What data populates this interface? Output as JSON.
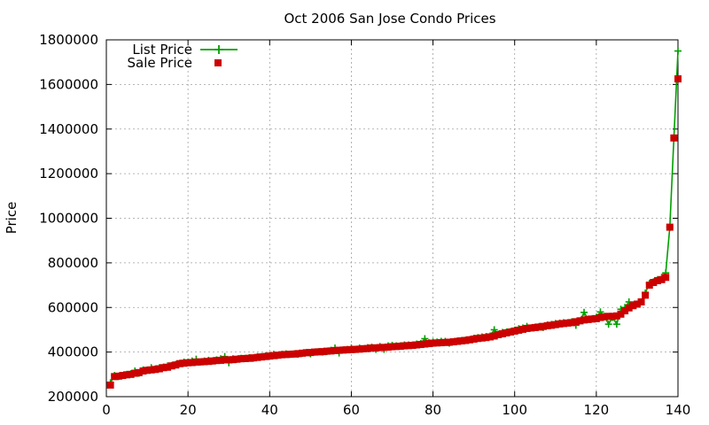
{
  "chart_data": {
    "type": "line",
    "title": "Oct 2006 San Jose Condo Prices",
    "xlabel": "",
    "ylabel": "Price",
    "xlim": [
      0,
      140
    ],
    "ylim": [
      200000,
      1800000
    ],
    "xticks": [
      0,
      20,
      40,
      60,
      80,
      100,
      120,
      140
    ],
    "yticks": [
      200000,
      400000,
      600000,
      800000,
      1000000,
      1200000,
      1400000,
      1600000,
      1800000
    ],
    "grid": true,
    "legend_position": "top-left",
    "series": [
      {
        "name": "List Price",
        "style": "line-points",
        "color": "#00a000",
        "marker": "plus",
        "x": [
          1,
          2,
          3,
          4,
          5,
          6,
          7,
          8,
          9,
          10,
          11,
          12,
          13,
          14,
          15,
          16,
          17,
          18,
          19,
          20,
          21,
          22,
          23,
          24,
          25,
          26,
          27,
          28,
          29,
          30,
          31,
          32,
          33,
          34,
          35,
          36,
          37,
          38,
          39,
          40,
          41,
          42,
          43,
          44,
          45,
          46,
          47,
          48,
          49,
          50,
          51,
          52,
          53,
          54,
          55,
          56,
          57,
          58,
          59,
          60,
          61,
          62,
          63,
          64,
          65,
          66,
          67,
          68,
          69,
          70,
          71,
          72,
          73,
          74,
          75,
          76,
          77,
          78,
          79,
          80,
          81,
          82,
          83,
          84,
          85,
          86,
          87,
          88,
          89,
          90,
          91,
          92,
          93,
          94,
          95,
          96,
          97,
          98,
          99,
          100,
          101,
          102,
          103,
          104,
          105,
          106,
          107,
          108,
          109,
          110,
          111,
          112,
          113,
          114,
          115,
          116,
          117,
          118,
          119,
          120,
          121,
          122,
          123,
          124,
          125,
          126,
          127,
          128,
          129,
          130,
          131,
          132,
          133,
          134,
          135,
          136,
          137,
          138,
          139,
          140
        ],
        "y": [
          262000,
          295000,
          290000,
          295000,
          300000,
          303000,
          315000,
          305000,
          320000,
          320000,
          330000,
          325000,
          330000,
          333000,
          338000,
          340000,
          345000,
          350000,
          355000,
          355000,
          360000,
          368000,
          355000,
          360000,
          363000,
          360000,
          365000,
          370000,
          380000,
          352000,
          370000,
          368000,
          372000,
          372000,
          375000,
          372000,
          380000,
          380000,
          383000,
          385000,
          390000,
          385000,
          390000,
          392000,
          390000,
          392000,
          390000,
          394000,
          398000,
          392000,
          400000,
          402000,
          400000,
          402000,
          408000,
          418000,
          396000,
          410000,
          412000,
          418000,
          412000,
          418000,
          415000,
          420000,
          422000,
          412000,
          425000,
          412000,
          428000,
          430000,
          428000,
          428000,
          432000,
          432000,
          432000,
          436000,
          438000,
          460000,
          442000,
          445000,
          445000,
          448000,
          448000,
          440000,
          446000,
          450000,
          452000,
          454000,
          456000,
          462000,
          465000,
          468000,
          470000,
          472000,
          500000,
          480000,
          488000,
          490000,
          492000,
          498000,
          505000,
          508000,
          515000,
          508000,
          512000,
          515000,
          510000,
          522000,
          524000,
          528000,
          530000,
          532000,
          532000,
          536000,
          520000,
          540000,
          578000,
          548000,
          550000,
          556000,
          580000,
          560000,
          525000,
          555000,
          525000,
          592000,
          600000,
          625000,
          612000,
          615000,
          625000,
          665000,
          708000,
          715000,
          725000,
          735000,
          755000,
          960000,
          1360000,
          1750000
        ]
      },
      {
        "name": "Sale Price",
        "style": "points",
        "color": "#cc0000",
        "marker": "square",
        "x": [
          1,
          2,
          3,
          4,
          5,
          6,
          7,
          8,
          9,
          10,
          11,
          12,
          13,
          14,
          15,
          16,
          17,
          18,
          19,
          20,
          21,
          22,
          23,
          24,
          25,
          26,
          27,
          28,
          29,
          30,
          31,
          32,
          33,
          34,
          35,
          36,
          37,
          38,
          39,
          40,
          41,
          42,
          43,
          44,
          45,
          46,
          47,
          48,
          49,
          50,
          51,
          52,
          53,
          54,
          55,
          56,
          57,
          58,
          59,
          60,
          61,
          62,
          63,
          64,
          65,
          66,
          67,
          68,
          69,
          70,
          71,
          72,
          73,
          74,
          75,
          76,
          77,
          78,
          79,
          80,
          81,
          82,
          83,
          84,
          85,
          86,
          87,
          88,
          89,
          90,
          91,
          92,
          93,
          94,
          95,
          96,
          97,
          98,
          99,
          100,
          101,
          102,
          103,
          104,
          105,
          106,
          107,
          108,
          109,
          110,
          111,
          112,
          113,
          114,
          115,
          116,
          117,
          118,
          119,
          120,
          121,
          122,
          123,
          124,
          125,
          126,
          127,
          128,
          129,
          130,
          131,
          132,
          133,
          134,
          135,
          136,
          137,
          138,
          139,
          140
        ],
        "y": [
          252000,
          290000,
          292000,
          295000,
          298000,
          300000,
          305000,
          308000,
          315000,
          318000,
          320000,
          322000,
          325000,
          330000,
          332000,
          338000,
          342000,
          348000,
          350000,
          352000,
          353000,
          355000,
          356000,
          357000,
          358000,
          360000,
          362000,
          363000,
          365000,
          365000,
          366000,
          368000,
          370000,
          371000,
          372000,
          374000,
          376000,
          378000,
          380000,
          382000,
          384000,
          386000,
          388000,
          389000,
          390000,
          391000,
          393000,
          395000,
          397000,
          398000,
          400000,
          401000,
          402000,
          404000,
          405000,
          407000,
          408000,
          409000,
          410000,
          411000,
          412000,
          413000,
          415000,
          416000,
          418000,
          419000,
          420000,
          421000,
          422000,
          424000,
          425000,
          426000,
          428000,
          429000,
          430000,
          432000,
          434000,
          436000,
          438000,
          440000,
          441000,
          442000,
          443000,
          444000,
          446000,
          448000,
          450000,
          452000,
          455000,
          458000,
          461000,
          463000,
          465000,
          468000,
          472000,
          478000,
          482000,
          486000,
          490000,
          494000,
          498000,
          502000,
          506000,
          508000,
          510000,
          512000,
          515000,
          518000,
          520000,
          523000,
          526000,
          528000,
          530000,
          532000,
          536000,
          540000,
          544000,
          546000,
          548000,
          550000,
          555000,
          558000,
          560000,
          560000,
          562000,
          570000,
          585000,
          598000,
          608000,
          615000,
          625000,
          655000,
          700000,
          712000,
          720000,
          725000,
          735000,
          960000,
          1360000,
          1625000
        ]
      }
    ]
  }
}
